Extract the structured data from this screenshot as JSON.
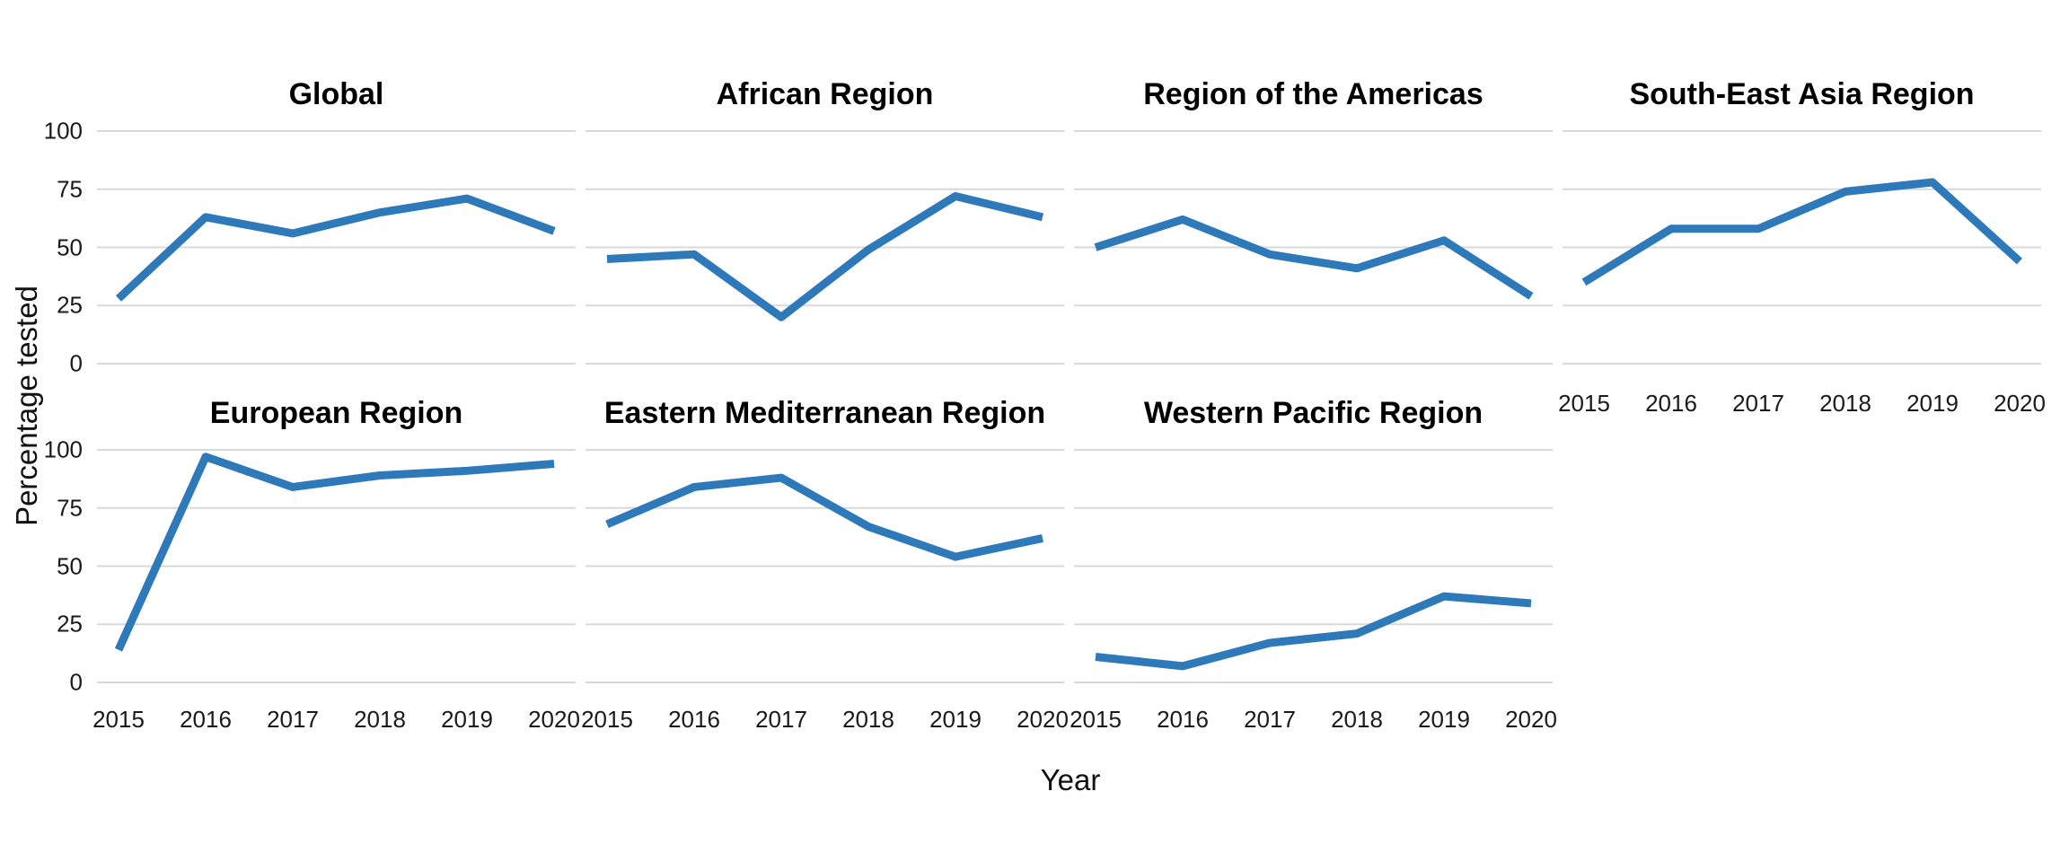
{
  "chart_data": {
    "type": "line",
    "title": "",
    "xlabel": "Year",
    "ylabel": "Percentage tested",
    "x": [
      2015,
      2016,
      2017,
      2018,
      2019,
      2020
    ],
    "x_tick_labels": [
      "2015",
      "2016",
      "2017",
      "2018",
      "2019",
      "2020"
    ],
    "ylim": [
      0,
      100
    ],
    "yticks": [
      100,
      75,
      50,
      25,
      0
    ],
    "ytick_labels": [
      "100",
      "75",
      "50",
      "25",
      "0"
    ],
    "grid": "horizontal-major-only",
    "legend": "none",
    "line_color": "#2E79B9",
    "gridline_color": "#D9D9D9",
    "text_color": "#1a1a1a",
    "facets": [
      {
        "title": "Global",
        "row": 0,
        "col": 0,
        "values": [
          28,
          63,
          56,
          65,
          71,
          57
        ],
        "x_labels_below": false
      },
      {
        "title": "African Region",
        "row": 0,
        "col": 1,
        "values": [
          45,
          47,
          20,
          49,
          72,
          63
        ],
        "x_labels_below": false
      },
      {
        "title": "Region of the Americas",
        "row": 0,
        "col": 2,
        "values": [
          50,
          62,
          47,
          41,
          53,
          29
        ],
        "x_labels_below": false
      },
      {
        "title": "South-East Asia Region",
        "row": 0,
        "col": 3,
        "values": [
          35,
          58,
          58,
          74,
          78,
          44
        ],
        "x_labels_below": true
      },
      {
        "title": "European Region",
        "row": 1,
        "col": 0,
        "values": [
          14,
          97,
          84,
          89,
          91,
          94
        ],
        "x_labels_below": true
      },
      {
        "title": "Eastern Mediterranean Region",
        "row": 1,
        "col": 1,
        "values": [
          68,
          84,
          88,
          67,
          54,
          62
        ],
        "x_labels_below": true
      },
      {
        "title": "Western Pacific Region",
        "row": 1,
        "col": 2,
        "values": [
          11,
          7,
          17,
          21,
          37,
          34
        ],
        "x_labels_below": true
      }
    ]
  }
}
